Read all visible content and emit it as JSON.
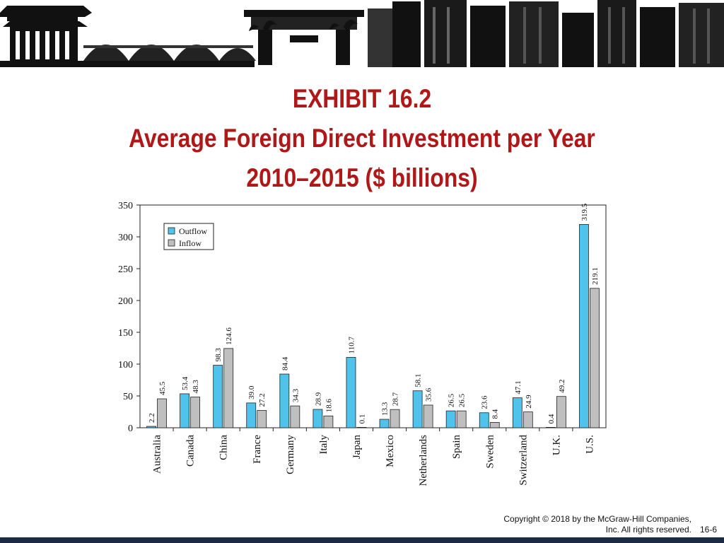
{
  "slide": {
    "title_line1": "EXHIBIT 16.2",
    "title_line2": "Average Foreign Direct Investment per Year",
    "title_line3": "2010–2015 ($ billions)",
    "copyright_line1": "Copyright © 2018 by the McGraw-Hill Companies,",
    "copyright_line2": "Inc. All rights reserved.",
    "slide_number": "16-6"
  },
  "colors": {
    "title": "#b01818",
    "outflow": "#4fc3ec",
    "inflow": "#bfbfbf",
    "bottom_bar": "#1d2a44"
  },
  "chart_data": {
    "type": "bar",
    "title": "",
    "xlabel": "",
    "ylabel": "",
    "ylim": [
      0,
      350
    ],
    "yticks": [
      0,
      50,
      100,
      150,
      200,
      250,
      300,
      350
    ],
    "grid": false,
    "legend": "top-left",
    "categories": [
      "Australia",
      "Canada",
      "China",
      "France",
      "Germany",
      "Italy",
      "Japan",
      "Mexico",
      "Netherlands",
      "Spain",
      "Sweden",
      "Switzerland",
      "U.K.",
      "U.S."
    ],
    "series": [
      {
        "name": "Outflow",
        "values": [
          2.2,
          53.4,
          98.3,
          39.0,
          84.4,
          28.9,
          110.7,
          13.3,
          58.1,
          26.5,
          23.6,
          47.1,
          0.4,
          319.5
        ],
        "labels": [
          "2.2",
          "53.4",
          "98.3",
          "39.0",
          "84.4",
          "28.9",
          "110.7",
          "13.3",
          "58.1",
          "26.5",
          "23.6",
          "47.1",
          "0.4",
          "319.5"
        ]
      },
      {
        "name": "Inflow",
        "values": [
          45.5,
          48.3,
          124.6,
          27.2,
          34.3,
          18.6,
          0.1,
          28.7,
          35.6,
          26.5,
          8.4,
          24.9,
          49.2,
          219.1
        ],
        "labels": [
          "45.5",
          "48.3",
          "124.6",
          "27.2",
          "34.3",
          "18.6",
          "0.1",
          "28.7",
          "35.6",
          "26.5",
          "8.4",
          "24.9",
          "49.2",
          "219.1"
        ]
      }
    ]
  }
}
